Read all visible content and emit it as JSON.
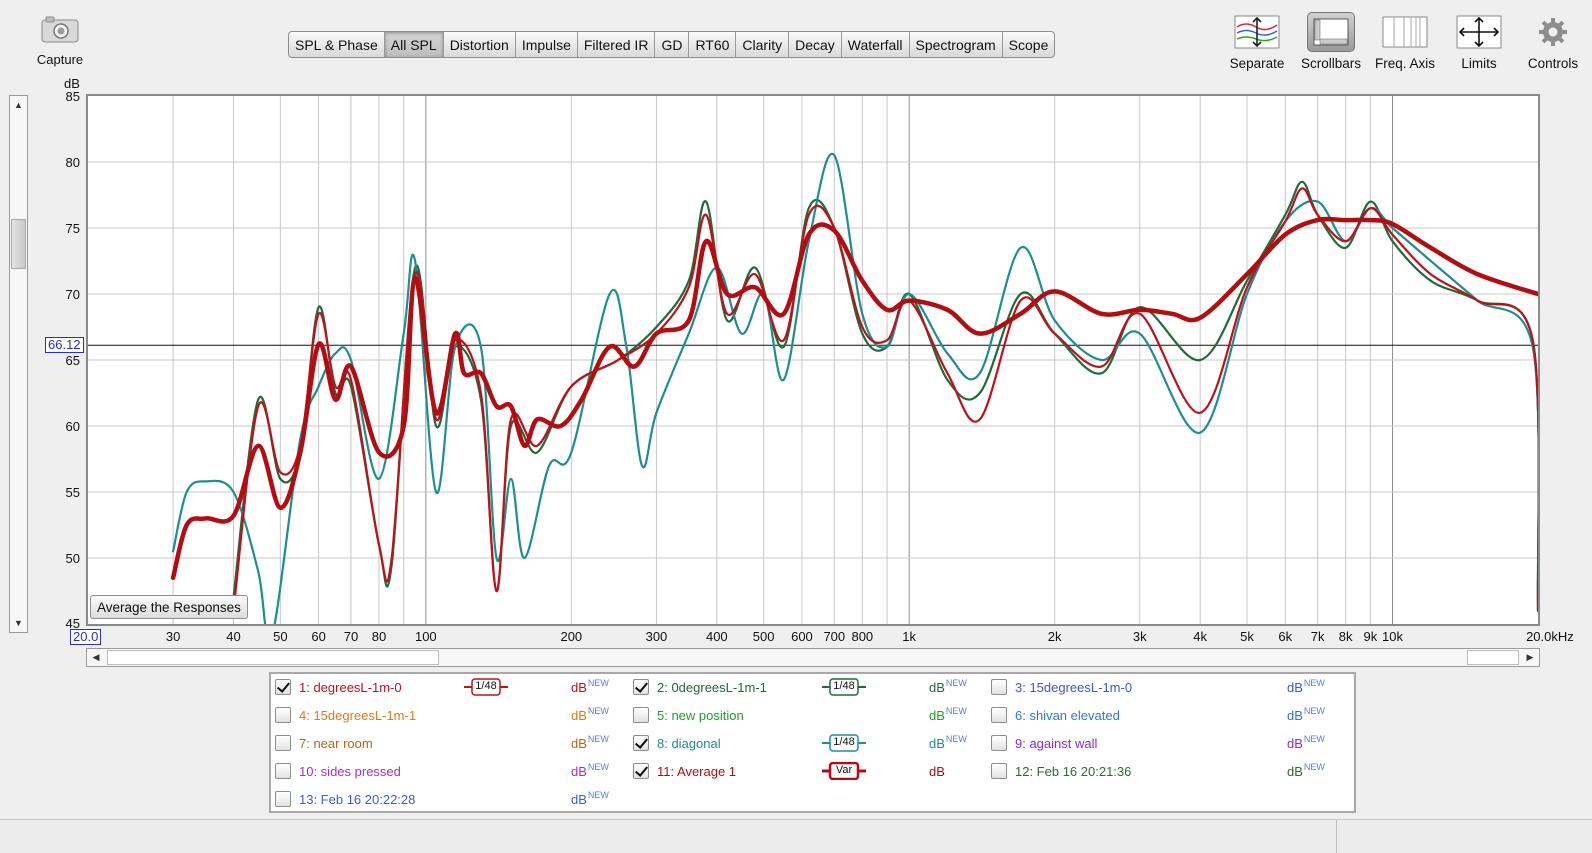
{
  "capture": {
    "label": "Capture"
  },
  "tabs": [
    "SPL & Phase",
    "All SPL",
    "Distortion",
    "Impulse",
    "Filtered IR",
    "GD",
    "RT60",
    "Clarity",
    "Decay",
    "Waterfall",
    "Spectrogram",
    "Scope"
  ],
  "active_tab": "All SPL",
  "tools": [
    {
      "label": "Separate",
      "icon": "separate-icon"
    },
    {
      "label": "Scrollbars",
      "icon": "scrollbars-icon"
    },
    {
      "label": "Freq. Axis",
      "icon": "freq-axis-icon"
    },
    {
      "label": "Limits",
      "icon": "limits-icon"
    },
    {
      "label": "Controls",
      "icon": "controls-gear-icon"
    }
  ],
  "plot": {
    "y_unit": "dB",
    "y_ticks": [
      "85",
      "80",
      "75",
      "70",
      "65",
      "60",
      "55",
      "50",
      "45"
    ],
    "x_ticks": [
      {
        "f": 30,
        "label": "30"
      },
      {
        "f": 40,
        "label": "40"
      },
      {
        "f": 50,
        "label": "50"
      },
      {
        "f": 60,
        "label": "60"
      },
      {
        "f": 70,
        "label": "70"
      },
      {
        "f": 80,
        "label": "80"
      },
      {
        "f": 100,
        "label": "100"
      },
      {
        "f": 200,
        "label": "200"
      },
      {
        "f": 300,
        "label": "300"
      },
      {
        "f": 400,
        "label": "400"
      },
      {
        "f": 500,
        "label": "500"
      },
      {
        "f": 600,
        "label": "600"
      },
      {
        "f": 700,
        "label": "700"
      },
      {
        "f": 800,
        "label": "800"
      },
      {
        "f": 1000,
        "label": "1k"
      },
      {
        "f": 2000,
        "label": "2k"
      },
      {
        "f": 3000,
        "label": "3k"
      },
      {
        "f": 4000,
        "label": "4k"
      },
      {
        "f": 5000,
        "label": "5k"
      },
      {
        "f": 6000,
        "label": "6k"
      },
      {
        "f": 7000,
        "label": "7k"
      },
      {
        "f": 8000,
        "label": "8k"
      },
      {
        "f": 9000,
        "label": "9k"
      },
      {
        "f": 10000,
        "label": "10k"
      },
      {
        "f": 20000,
        "label": "20.0kHz"
      }
    ],
    "x_start_marker": "20.0",
    "cursor_marker": "66.12",
    "average_button": "Average the Responses",
    "colors": {
      "grid": "#c8c8c8",
      "major_grid": "#8e8e8e",
      "trace_red": "#c0101a",
      "trace_green": "#1f6b3a",
      "trace_teal": "#1d8f8f",
      "trace_avg": "#b30d12"
    }
  },
  "chart_data": {
    "type": "line",
    "xscale": "log",
    "xlim": [
      20,
      20000
    ],
    "ylim": [
      45,
      85
    ],
    "xlabel": "",
    "ylabel": "dB",
    "cursor_y": 66.12,
    "series": [
      {
        "name": "11: Average 1",
        "color": "#b30d12",
        "points": [
          [
            30,
            48.5
          ],
          [
            32,
            52.5
          ],
          [
            35,
            53
          ],
          [
            40,
            53.2
          ],
          [
            45,
            58.5
          ],
          [
            50,
            53.8
          ],
          [
            55,
            58
          ],
          [
            60,
            66.2
          ],
          [
            65,
            62
          ],
          [
            70,
            64.5
          ],
          [
            80,
            58
          ],
          [
            90,
            60
          ],
          [
            95,
            71.2
          ],
          [
            105,
            61
          ],
          [
            115,
            67
          ],
          [
            120,
            64
          ],
          [
            130,
            64
          ],
          [
            140,
            61.5
          ],
          [
            150,
            61.5
          ],
          [
            160,
            58.5
          ],
          [
            170,
            60.5
          ],
          [
            190,
            60
          ],
          [
            210,
            62
          ],
          [
            240,
            66
          ],
          [
            270,
            64.5
          ],
          [
            300,
            67
          ],
          [
            350,
            68
          ],
          [
            380,
            74
          ],
          [
            420,
            70
          ],
          [
            480,
            70.5
          ],
          [
            550,
            68.5
          ],
          [
            620,
            74.5
          ],
          [
            700,
            74.8
          ],
          [
            800,
            71
          ],
          [
            900,
            68.8
          ],
          [
            1000,
            69.5
          ],
          [
            1200,
            68.8
          ],
          [
            1400,
            67
          ],
          [
            1700,
            68.5
          ],
          [
            2000,
            70.2
          ],
          [
            2500,
            68.5
          ],
          [
            3000,
            68.8
          ],
          [
            3500,
            68.5
          ],
          [
            4000,
            68.2
          ],
          [
            5000,
            71.5
          ],
          [
            6000,
            74.5
          ],
          [
            7000,
            75.6
          ],
          [
            8000,
            75.6
          ],
          [
            9000,
            75.6
          ],
          [
            10000,
            75.3
          ],
          [
            12000,
            73.5
          ],
          [
            15000,
            71.5
          ],
          [
            20000,
            70
          ]
        ]
      },
      {
        "name": "2: 0degreesL-1m-1",
        "color": "#1f6b3a",
        "points": [
          [
            40,
            47
          ],
          [
            45,
            62
          ],
          [
            50,
            56
          ],
          [
            55,
            58
          ],
          [
            60,
            69
          ],
          [
            65,
            62.5
          ],
          [
            70,
            63
          ],
          [
            80,
            51
          ],
          [
            85,
            49.5
          ],
          [
            95,
            72
          ],
          [
            105,
            60
          ],
          [
            115,
            66
          ],
          [
            130,
            62
          ],
          [
            140,
            47.5
          ],
          [
            150,
            60
          ],
          [
            170,
            58
          ],
          [
            200,
            63
          ],
          [
            250,
            65
          ],
          [
            300,
            67.5
          ],
          [
            350,
            71
          ],
          [
            380,
            77
          ],
          [
            420,
            68
          ],
          [
            480,
            72
          ],
          [
            550,
            66
          ],
          [
            620,
            76.5
          ],
          [
            700,
            75
          ],
          [
            800,
            67
          ],
          [
            900,
            66
          ],
          [
            1000,
            70
          ],
          [
            1200,
            63.5
          ],
          [
            1400,
            62.5
          ],
          [
            1700,
            70
          ],
          [
            2000,
            67
          ],
          [
            2500,
            64
          ],
          [
            3000,
            69
          ],
          [
            4000,
            65
          ],
          [
            5000,
            71
          ],
          [
            6000,
            76
          ],
          [
            6500,
            78.5
          ],
          [
            7000,
            76
          ],
          [
            8000,
            73.5
          ],
          [
            9000,
            77
          ],
          [
            10000,
            74
          ],
          [
            12000,
            71
          ],
          [
            15000,
            69.5
          ],
          [
            19500,
            66.5
          ],
          [
            20000,
            46
          ]
        ]
      },
      {
        "name": "8: diagonal",
        "color": "#1d8f8f",
        "points": [
          [
            30,
            50.5
          ],
          [
            32,
            55
          ],
          [
            35,
            55.8
          ],
          [
            40,
            55
          ],
          [
            45,
            49
          ],
          [
            48,
            44
          ],
          [
            55,
            59
          ],
          [
            60,
            63
          ],
          [
            65,
            65.5
          ],
          [
            70,
            65
          ],
          [
            80,
            56
          ],
          [
            90,
            67
          ],
          [
            95,
            72.5
          ],
          [
            105,
            55
          ],
          [
            115,
            66
          ],
          [
            130,
            66
          ],
          [
            140,
            50
          ],
          [
            150,
            56
          ],
          [
            160,
            50
          ],
          [
            180,
            57
          ],
          [
            200,
            58
          ],
          [
            240,
            70
          ],
          [
            260,
            66
          ],
          [
            280,
            57
          ],
          [
            300,
            61
          ],
          [
            350,
            67
          ],
          [
            400,
            72
          ],
          [
            450,
            67
          ],
          [
            500,
            70
          ],
          [
            550,
            63.5
          ],
          [
            620,
            74
          ],
          [
            700,
            80.5
          ],
          [
            800,
            68.5
          ],
          [
            900,
            66
          ],
          [
            1000,
            70
          ],
          [
            1200,
            65.5
          ],
          [
            1400,
            64
          ],
          [
            1700,
            73.5
          ],
          [
            2000,
            68
          ],
          [
            2500,
            65
          ],
          [
            3000,
            67
          ],
          [
            4000,
            59.5
          ],
          [
            5000,
            70
          ],
          [
            6000,
            75.5
          ],
          [
            7000,
            77
          ],
          [
            8000,
            74
          ],
          [
            9000,
            76.5
          ],
          [
            10000,
            75
          ],
          [
            12000,
            72.5
          ],
          [
            15000,
            69.5
          ],
          [
            19500,
            66
          ],
          [
            20000,
            47
          ]
        ]
      },
      {
        "name": "1: degreesL-1m-0",
        "color": "#c0101a",
        "points": [
          [
            40,
            46
          ],
          [
            45,
            61.5
          ],
          [
            50,
            56.5
          ],
          [
            55,
            58.5
          ],
          [
            60,
            68.5
          ],
          [
            65,
            63
          ],
          [
            70,
            63.5
          ],
          [
            80,
            51
          ],
          [
            85,
            50
          ],
          [
            95,
            71.5
          ],
          [
            105,
            60.5
          ],
          [
            115,
            66.5
          ],
          [
            130,
            62.5
          ],
          [
            140,
            47.5
          ],
          [
            150,
            60.5
          ],
          [
            170,
            58.5
          ],
          [
            200,
            63
          ],
          [
            250,
            65
          ],
          [
            300,
            67
          ],
          [
            350,
            70.5
          ],
          [
            380,
            76
          ],
          [
            420,
            68.5
          ],
          [
            480,
            71.5
          ],
          [
            550,
            66.5
          ],
          [
            620,
            76
          ],
          [
            700,
            75
          ],
          [
            800,
            67.5
          ],
          [
            900,
            66.5
          ],
          [
            1000,
            69.5
          ],
          [
            1200,
            64
          ],
          [
            1400,
            60.5
          ],
          [
            1700,
            69.5
          ],
          [
            2000,
            67
          ],
          [
            2500,
            64.5
          ],
          [
            3000,
            68.5
          ],
          [
            4000,
            61
          ],
          [
            5000,
            70.5
          ],
          [
            6000,
            75.5
          ],
          [
            6500,
            78
          ],
          [
            7000,
            76
          ],
          [
            8000,
            74
          ],
          [
            9000,
            76.5
          ],
          [
            10000,
            74.5
          ],
          [
            12000,
            71.5
          ],
          [
            15000,
            69.5
          ],
          [
            19500,
            66.5
          ],
          [
            20000,
            46
          ]
        ]
      }
    ]
  },
  "legend": [
    {
      "id": "1",
      "label": "1: degreesL-1m-0",
      "checked": true,
      "color": "#c0101a",
      "smooth": "1/48",
      "unit": "dB",
      "sup": "NEW"
    },
    {
      "id": "2",
      "label": "2: 0degreesL-1m-1",
      "checked": true,
      "color": "#1f6b3a",
      "smooth": "1/48",
      "unit": "dB",
      "sup": "NEW"
    },
    {
      "id": "3",
      "label": "3: 15degreesL-1m-0",
      "checked": false,
      "color": "#3c58c9",
      "smooth": "",
      "unit": "dB",
      "sup": "NEW"
    },
    {
      "id": "4",
      "label": "4: 15degreesL-1m-1",
      "checked": false,
      "color": "#e07a12",
      "smooth": "",
      "unit": "dB",
      "sup": "NEW"
    },
    {
      "id": "5",
      "label": "5: new position",
      "checked": false,
      "color": "#1e9e2a",
      "smooth": "",
      "unit": "dB",
      "sup": "NEW"
    },
    {
      "id": "6",
      "label": "6: shivan elevated",
      "checked": false,
      "color": "#2e77d0",
      "smooth": "",
      "unit": "dB",
      "sup": "NEW"
    },
    {
      "id": "7",
      "label": "7: near room",
      "checked": false,
      "color": "#b5641b",
      "smooth": "",
      "unit": "dB",
      "sup": "NEW"
    },
    {
      "id": "8",
      "label": "8: diagonal",
      "checked": true,
      "color": "#1d8f8f",
      "smooth": "1/48",
      "unit": "dB",
      "sup": "NEW"
    },
    {
      "id": "9",
      "label": "9: against wall",
      "checked": false,
      "color": "#8a2be2",
      "smooth": "",
      "unit": "dB",
      "sup": "NEW"
    },
    {
      "id": "10",
      "label": "10: sides pressed",
      "checked": false,
      "color": "#b02cc0",
      "smooth": "",
      "unit": "dB",
      "sup": "NEW"
    },
    {
      "id": "11",
      "label": "11: Average 1",
      "checked": true,
      "color": "#b30d12",
      "smooth": "Var",
      "unit": "dB",
      "sup": ""
    },
    {
      "id": "12",
      "label": "12: Feb 16 20:21:36",
      "checked": false,
      "color": "#2f6b2f",
      "smooth": "",
      "unit": "dB",
      "sup": "NEW"
    },
    {
      "id": "13",
      "label": "13: Feb 16 20:22:28",
      "checked": false,
      "color": "#3f5fc0",
      "smooth": "",
      "unit": "dB",
      "sup": "NEW"
    }
  ]
}
